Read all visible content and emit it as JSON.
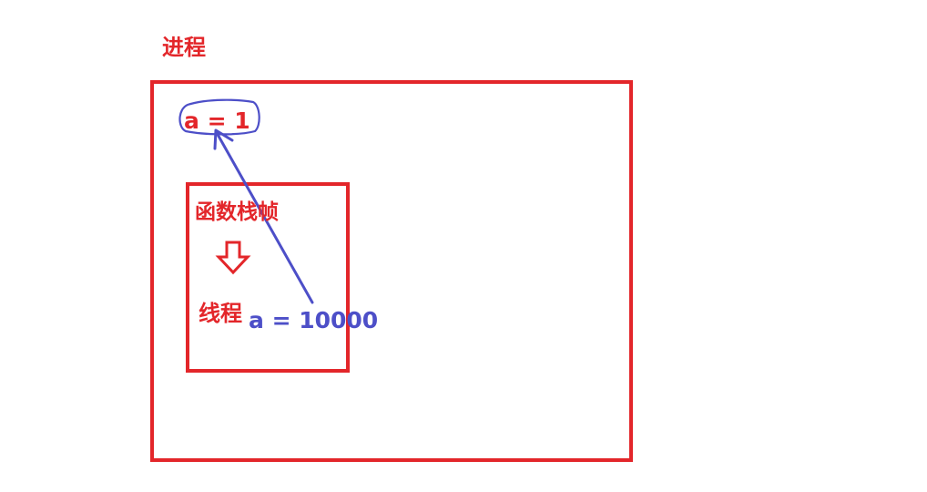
{
  "diagram": {
    "process_label": "进程",
    "variable_global": "a = 1",
    "stack_frame_label": "函数栈帧",
    "thread_label": "线程",
    "variable_thread": "a = 10000",
    "colors": {
      "red": "#e3262a",
      "blue": "#4d4fc8"
    },
    "icons": {
      "transition_arrow": "down-arrow-icon"
    }
  }
}
